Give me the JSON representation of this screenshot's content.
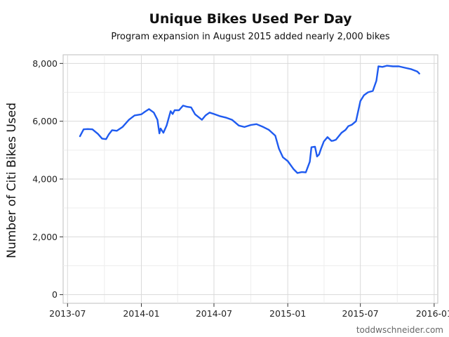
{
  "chart_data": {
    "type": "line",
    "title": "Unique Bikes Used Per Day",
    "subtitle": "Program expansion in August 2015 added nearly 2,000 bikes",
    "xlabel": "",
    "ylabel": "Number of Citi Bikes Used",
    "credit": "toddwschneider.com",
    "x_ticks": [
      "2013-07",
      "2014-01",
      "2014-07",
      "2015-01",
      "2015-07",
      "2016-01"
    ],
    "y_ticks": [
      0,
      2000,
      4000,
      6000,
      8000
    ],
    "y_tick_labels": [
      "0",
      "2,000",
      "4,000",
      "6,000",
      "8,000"
    ],
    "xlim": [
      "2013-06-20",
      "2016-01-10"
    ],
    "ylim": [
      -300,
      8300
    ],
    "grid": true,
    "line_color": "#1f5bf0",
    "series": [
      {
        "x": [
          "2013-08-01",
          "2013-08-10",
          "2013-08-20",
          "2013-09-01",
          "2013-09-15",
          "2013-09-25",
          "2013-10-05",
          "2013-10-12",
          "2013-10-20",
          "2013-11-01",
          "2013-11-15",
          "2013-12-01",
          "2013-12-15",
          "2014-01-01",
          "2014-01-10",
          "2014-01-20",
          "2014-02-01",
          "2014-02-10",
          "2014-02-15",
          "2014-02-18",
          "2014-02-25",
          "2014-03-05",
          "2014-03-15",
          "2014-03-20",
          "2014-03-25",
          "2014-04-05",
          "2014-04-15",
          "2014-04-25",
          "2014-05-05",
          "2014-05-15",
          "2014-06-01",
          "2014-06-10",
          "2014-06-20",
          "2014-07-01",
          "2014-07-15",
          "2014-08-01",
          "2014-08-15",
          "2014-09-01",
          "2014-09-15",
          "2014-10-01",
          "2014-10-15",
          "2014-11-01",
          "2014-11-15",
          "2014-12-01",
          "2014-12-10",
          "2014-12-20",
          "2015-01-01",
          "2015-01-15",
          "2015-01-25",
          "2015-02-05",
          "2015-02-15",
          "2015-02-25",
          "2015-03-01",
          "2015-03-10",
          "2015-03-15",
          "2015-03-20",
          "2015-03-25",
          "2015-04-01",
          "2015-04-10",
          "2015-04-20",
          "2015-04-25",
          "2015-05-01",
          "2015-05-15",
          "2015-05-25",
          "2015-06-01",
          "2015-06-10",
          "2015-06-20",
          "2015-07-01",
          "2015-07-10",
          "2015-07-20",
          "2015-08-01",
          "2015-08-10",
          "2015-08-15",
          "2015-08-25",
          "2015-09-05",
          "2015-09-20",
          "2015-10-05",
          "2015-10-20",
          "2015-11-05",
          "2015-11-20",
          "2015-11-25"
        ],
        "values": [
          5480,
          5720,
          5730,
          5720,
          5560,
          5400,
          5380,
          5550,
          5690,
          5670,
          5800,
          6050,
          6200,
          6240,
          6330,
          6420,
          6300,
          6050,
          5580,
          5750,
          5600,
          5850,
          6350,
          6250,
          6380,
          6380,
          6540,
          6500,
          6480,
          6240,
          6050,
          6200,
          6300,
          6250,
          6180,
          6120,
          6050,
          5850,
          5800,
          5870,
          5900,
          5800,
          5700,
          5500,
          5050,
          4750,
          4620,
          4350,
          4210,
          4240,
          4230,
          4600,
          5100,
          5120,
          4780,
          4850,
          5050,
          5300,
          5450,
          5320,
          5330,
          5360,
          5600,
          5700,
          5830,
          5880,
          6000,
          6700,
          6900,
          7000,
          7050,
          7400,
          7900,
          7880,
          7920,
          7900,
          7900,
          7850,
          7800,
          7720,
          7650
        ]
      }
    ]
  }
}
